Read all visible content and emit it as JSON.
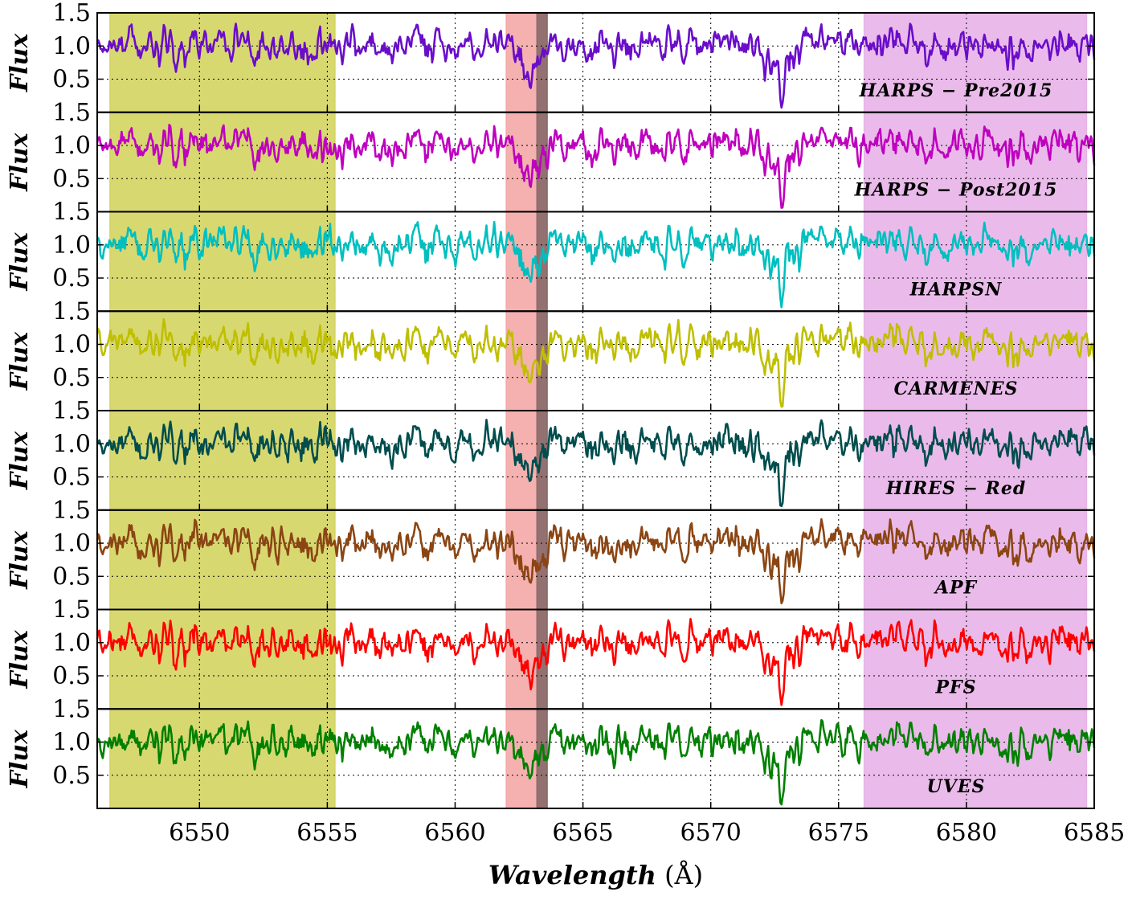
{
  "chart_data": {
    "type": "line",
    "title": "",
    "xlabel": "Wavelength",
    "xlabel_unit": "(Å)",
    "ylabel": "Flux",
    "xlim": [
      6546,
      6585
    ],
    "ylim": [
      0,
      1.5
    ],
    "x_ticks": [
      6550,
      6555,
      6560,
      6565,
      6570,
      6575,
      6580,
      6585
    ],
    "y_ticks": [
      "0.5",
      "1.0",
      "1.5"
    ],
    "grid": true,
    "shaded_regions": [
      {
        "name": "left-continuum",
        "x": [
          6546.5,
          6555.3
        ],
        "color": "#d4d462"
      },
      {
        "name": "h-alpha-band",
        "x": [
          6562.0,
          6563.6
        ],
        "color": "#f4a8a6"
      },
      {
        "name": "h-alpha-core",
        "x": [
          6563.2,
          6563.6
        ],
        "color": "#8a6a6a"
      },
      {
        "name": "right-continuum",
        "x": [
          6576.0,
          6584.7
        ],
        "color": "#e8b4e8"
      }
    ],
    "features": {
      "continuum": 1.0,
      "h_alpha_dip": {
        "center": 6562.9,
        "depth": 0.45
      },
      "deep_line": {
        "center": 6572.8,
        "min_flux": 0.06
      }
    },
    "series": [
      {
        "name": "HARPS − Pre2015",
        "label": "HARPS − Pre2015",
        "color": "#6a0dca",
        "seed": 11
      },
      {
        "name": "HARPS − Post2015",
        "label": "HARPS − Post2015",
        "color": "#bf00bf",
        "seed": 23
      },
      {
        "name": "HARPSN",
        "label": "HARPSN",
        "color": "#00bfbf",
        "seed": 37
      },
      {
        "name": "CARMENES",
        "label": "CARMENES",
        "color": "#bfbf00",
        "seed": 41
      },
      {
        "name": "HIRES − Red",
        "label": "HIRES − Red",
        "color": "#004d4d",
        "seed": 53
      },
      {
        "name": "APF",
        "label": "APF",
        "color": "#8b4513",
        "seed": 67
      },
      {
        "name": "PFS",
        "label": "PFS",
        "color": "#ff0000",
        "seed": 79
      },
      {
        "name": "UVES",
        "label": "UVES",
        "color": "#008000",
        "seed": 97
      }
    ]
  }
}
